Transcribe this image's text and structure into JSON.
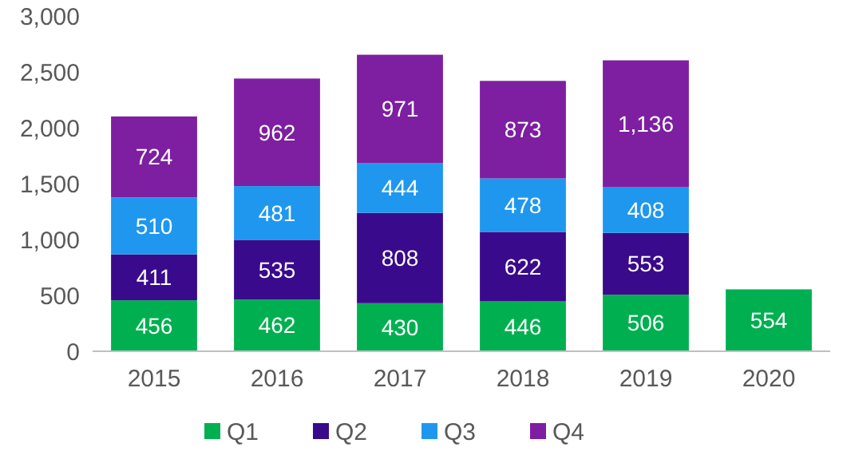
{
  "chart_data": {
    "type": "bar",
    "stacked": true,
    "categories": [
      "2015",
      "2016",
      "2017",
      "2018",
      "2019",
      "2020"
    ],
    "series": [
      {
        "name": "Q1",
        "color": "#00b050",
        "values": [
          456,
          462,
          430,
          446,
          506,
          554
        ]
      },
      {
        "name": "Q2",
        "color": "#3a0a8c",
        "values": [
          411,
          535,
          808,
          622,
          553,
          null
        ]
      },
      {
        "name": "Q3",
        "color": "#1f97ef",
        "values": [
          510,
          481,
          444,
          478,
          408,
          null
        ]
      },
      {
        "name": "Q4",
        "color": "#7d1fa0",
        "values": [
          724,
          962,
          971,
          873,
          1136,
          null
        ],
        "value_labels": [
          "724",
          "962",
          "971",
          "873",
          "1,136",
          null
        ]
      }
    ],
    "ylim": [
      0,
      3000
    ],
    "yticks": [
      {
        "value": 0,
        "label": "0"
      },
      {
        "value": 500,
        "label": "500"
      },
      {
        "value": 1000,
        "label": "1,000"
      },
      {
        "value": 1500,
        "label": "1,500"
      },
      {
        "value": 2000,
        "label": "2,000"
      },
      {
        "value": 2500,
        "label": "2,500"
      },
      {
        "value": 3000,
        "label": "3,000"
      }
    ],
    "data_labels": true,
    "legend": "bottom",
    "grid": false
  }
}
